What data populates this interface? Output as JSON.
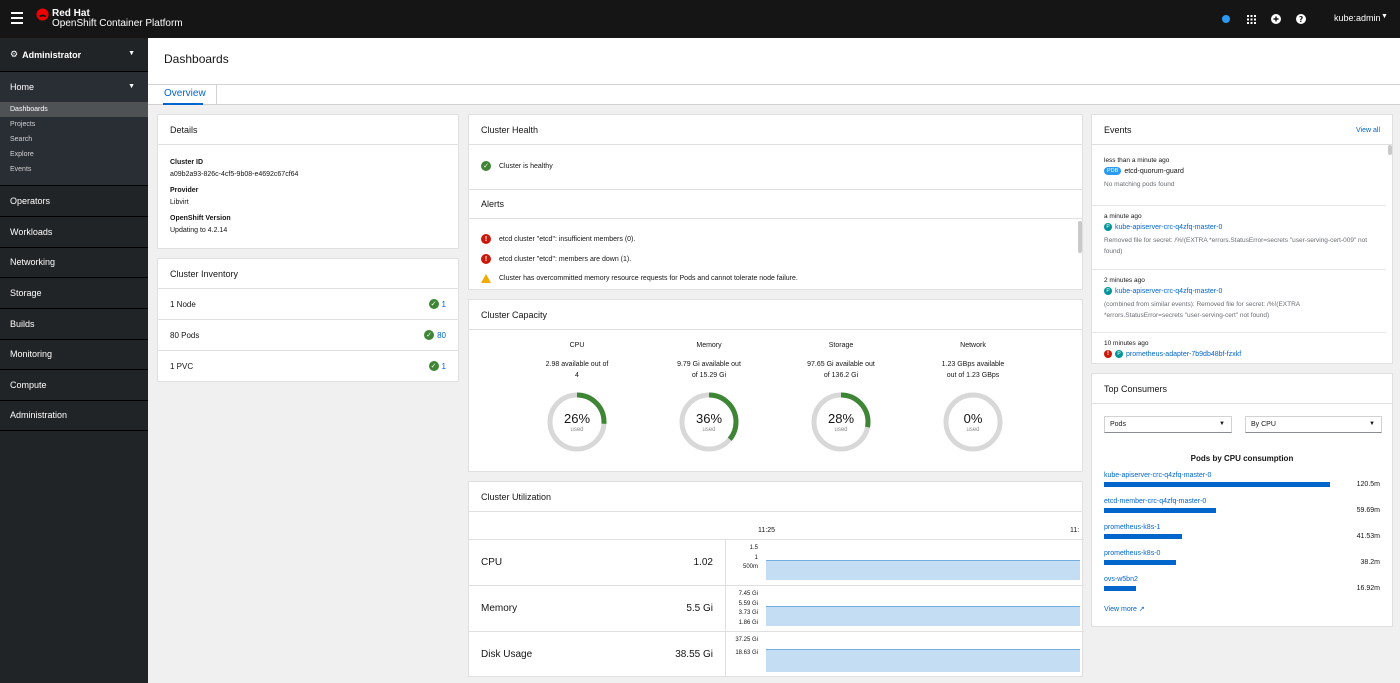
{
  "masthead": {
    "brand_line1": "Red Hat",
    "brand_line2": "OpenShift Container Platform",
    "user": "kube:admin"
  },
  "sidebar": {
    "perspective": "Administrator",
    "home": {
      "label": "Home",
      "items": [
        "Dashboards",
        "Projects",
        "Search",
        "Explore",
        "Events"
      ]
    },
    "sections": [
      "Operators",
      "Workloads",
      "Networking",
      "Storage",
      "Builds",
      "Monitoring",
      "Compute",
      "Administration"
    ]
  },
  "page": {
    "title": "Dashboards",
    "tab": "Overview"
  },
  "details": {
    "title": "Details",
    "cluster_id_label": "Cluster ID",
    "cluster_id": "a09b2a93-826c-4cf5-9b08-e4692c67cf64",
    "provider_label": "Provider",
    "provider": "Libvirt",
    "version_label": "OpenShift Version",
    "version": "Updating to 4.2.14"
  },
  "inventory": {
    "title": "Cluster Inventory",
    "rows": [
      {
        "label": "1 Node",
        "count": "1"
      },
      {
        "label": "80 Pods",
        "count": "80"
      },
      {
        "label": "1 PVC",
        "count": "1"
      }
    ]
  },
  "health": {
    "title": "Cluster Health",
    "status": "Cluster is healthy",
    "alerts_title": "Alerts",
    "alerts": [
      {
        "level": "error",
        "text": "etcd cluster \"etcd\": insufficient members (0)."
      },
      {
        "level": "error",
        "text": "etcd cluster \"etcd\": members are down (1)."
      },
      {
        "level": "warning",
        "text": "Cluster has overcommitted memory resource requests for Pods and cannot tolerate node failure."
      }
    ]
  },
  "capacity": {
    "title": "Cluster Capacity",
    "items": [
      {
        "name": "CPU",
        "line1": "2.98 available out of",
        "line2": "4",
        "percent": "26%",
        "fraction": 0.26,
        "sub": "used"
      },
      {
        "name": "Memory",
        "line1": "9.79 Gi available out",
        "line2": "of 15.29 Gi",
        "percent": "36%",
        "fraction": 0.36,
        "sub": "used"
      },
      {
        "name": "Storage",
        "line1": "97.65 Gi available out",
        "line2": "of 136.2 Gi",
        "percent": "28%",
        "fraction": 0.28,
        "sub": "used"
      },
      {
        "name": "Network",
        "line1": "1.23 GBps available",
        "line2": "out of 1.23 GBps",
        "percent": "0%",
        "fraction": 0,
        "sub": "used"
      }
    ]
  },
  "utilization": {
    "title": "Cluster Utilization",
    "time_start": "11:25",
    "time_end": "11:",
    "rows": [
      {
        "name": "CPU",
        "value": "1.02",
        "ticks": [
          "1.5",
          "1",
          "500m"
        ]
      },
      {
        "name": "Memory",
        "value": "5.5 Gi",
        "ticks": [
          "7.45 Gi",
          "5.59 Gi",
          "3.73 Gi",
          "1.86 Gi"
        ]
      },
      {
        "name": "Disk Usage",
        "value": "38.55 Gi",
        "ticks": [
          "37.25 Gi",
          "18.63 Gi"
        ]
      }
    ]
  },
  "events": {
    "title": "Events",
    "view_all": "View all",
    "items": [
      {
        "time": "less than a minute ago",
        "badge": "PDB",
        "resource": "etcd-quorum-guard",
        "message": "No matching pods found",
        "level": "info"
      },
      {
        "time": "a minute ago",
        "badge": "P",
        "resource": "kube-apiserver-crc-q4zfq-master-0",
        "message": "Removed file for secret: /%!(EXTRA *errors.StatusError=secrets \"user-serving-cert-009\" not found)",
        "level": "info"
      },
      {
        "time": "2 minutes ago",
        "badge": "P",
        "resource": "kube-apiserver-crc-q4zfq-master-0",
        "message": "(combined from similar events): Removed file for secret: /%!(EXTRA *errors.StatusError=secrets \"user-serving-cert\" not found)",
        "level": "info"
      },
      {
        "time": "10 minutes ago",
        "badge": "P",
        "resource": "prometheus-adapter-7b9db48bf-fzxkf",
        "message": "",
        "level": "error"
      }
    ]
  },
  "consumers": {
    "title": "Top Consumers",
    "select_type": "Pods",
    "select_sort": "By CPU",
    "subtitle": "Pods by CPU consumption",
    "items": [
      {
        "name": "kube-apiserver-crc-q4zfq-master-0",
        "value": "120.5m",
        "amount": 120.5
      },
      {
        "name": "etcd-member-crc-q4zfq-master-0",
        "value": "59.69m",
        "amount": 59.69
      },
      {
        "name": "prometheus-k8s-1",
        "value": "41.53m",
        "amount": 41.53
      },
      {
        "name": "prometheus-k8s-0",
        "value": "38.2m",
        "amount": 38.2
      },
      {
        "name": "ovs-w5bn2",
        "value": "16.92m",
        "amount": 16.92
      }
    ],
    "view_more": "View more"
  },
  "colors": {
    "accent": "#0066cc",
    "ok": "#3e8635",
    "error": "#c9190b",
    "warning": "#f0ab00",
    "donut": "#3e8635"
  }
}
